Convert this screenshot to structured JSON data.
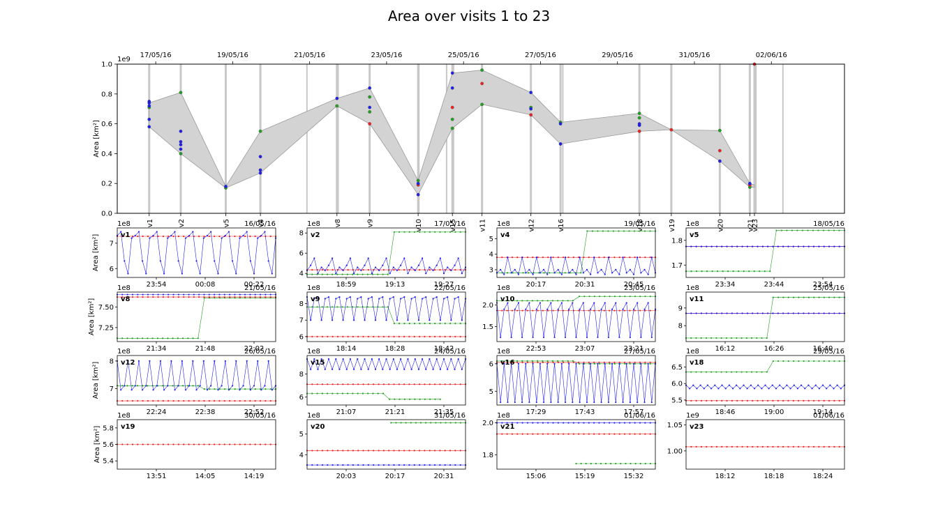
{
  "chart_data": [
    {
      "type": "area",
      "id": "main",
      "title": "Area over visits 1 to 23",
      "ylabel": "Area [km²]",
      "y_scale_label": "1e9",
      "ylim": [
        0,
        1.0
      ],
      "yticks": [
        "0.0",
        "0.2",
        "0.4",
        "0.6",
        "0.8",
        "1.0"
      ],
      "xlim": [
        0.0,
        18.9
      ],
      "top_ticks": [
        {
          "x": 1.0,
          "label": "17/05/16"
        },
        {
          "x": 3.0,
          "label": "19/05/16"
        },
        {
          "x": 5.0,
          "label": "21/05/16"
        },
        {
          "x": 7.0,
          "label": "23/05/16"
        },
        {
          "x": 9.0,
          "label": "25/05/16"
        },
        {
          "x": 11.0,
          "label": "27/05/16"
        },
        {
          "x": 13.0,
          "label": "29/05/16"
        },
        {
          "x": 15.0,
          "label": "31/05/16"
        },
        {
          "x": 17.0,
          "label": "02/06/16"
        }
      ],
      "visits": [
        {
          "label": "v1",
          "x": 0.83
        },
        {
          "label": "v2",
          "x": 1.65
        },
        {
          "label": "v5",
          "x": 2.82
        },
        {
          "label": "v4",
          "x": 3.72
        },
        {
          "label": "v8",
          "x": 5.71
        },
        {
          "label": "v9",
          "x": 6.56
        },
        {
          "label": "v10",
          "x": 7.82
        },
        {
          "label": "v15",
          "x": 8.71
        },
        {
          "label": "v11",
          "x": 9.48
        },
        {
          "label": "v12",
          "x": 10.75
        },
        {
          "label": "v16",
          "x": 11.52
        },
        {
          "label": "v18",
          "x": 13.57
        },
        {
          "label": "v19",
          "x": 14.4
        },
        {
          "label": "v20",
          "x": 15.66
        },
        {
          "label": "v21",
          "x": 16.44
        },
        {
          "label": "v23",
          "x": 16.56
        }
      ],
      "extra_lines": [
        4.93,
        5.74,
        7.84,
        8.56,
        8.74,
        11.58,
        16.6,
        17.3
      ],
      "band_upper": [
        [
          0.83,
          0.74
        ],
        [
          1.65,
          0.81
        ],
        [
          2.82,
          0.18
        ],
        [
          3.72,
          0.55
        ],
        [
          5.71,
          0.77
        ],
        [
          6.56,
          0.84
        ],
        [
          7.82,
          0.22
        ],
        [
          8.71,
          0.94
        ],
        [
          9.48,
          0.96
        ],
        [
          10.75,
          0.81
        ],
        [
          11.52,
          0.61
        ],
        [
          13.57,
          0.67
        ],
        [
          14.4,
          0.56
        ],
        [
          15.66,
          0.555
        ],
        [
          16.44,
          0.2
        ],
        [
          16.56,
          0.19
        ]
      ],
      "band_lower": [
        [
          0.83,
          0.58
        ],
        [
          1.65,
          0.4
        ],
        [
          2.82,
          0.17
        ],
        [
          3.72,
          0.27
        ],
        [
          5.71,
          0.72
        ],
        [
          6.56,
          0.6
        ],
        [
          7.82,
          0.125
        ],
        [
          8.71,
          0.57
        ],
        [
          9.48,
          0.73
        ],
        [
          10.75,
          0.66
        ],
        [
          11.52,
          0.465
        ],
        [
          13.57,
          0.55
        ],
        [
          14.4,
          0.56
        ],
        [
          15.66,
          0.35
        ],
        [
          16.44,
          0.175
        ],
        [
          16.56,
          0.175
        ]
      ],
      "points_blue": [
        [
          0.83,
          0.75
        ],
        [
          0.83,
          0.74
        ],
        [
          0.83,
          0.72
        ],
        [
          0.83,
          0.63
        ],
        [
          0.83,
          0.58
        ],
        [
          1.65,
          0.55
        ],
        [
          1.65,
          0.48
        ],
        [
          1.65,
          0.46
        ],
        [
          1.65,
          0.43
        ],
        [
          2.82,
          0.18
        ],
        [
          3.72,
          0.38
        ],
        [
          3.72,
          0.29
        ],
        [
          3.72,
          0.27
        ],
        [
          5.71,
          0.77
        ],
        [
          6.56,
          0.84
        ],
        [
          6.56,
          0.71
        ],
        [
          7.82,
          0.2
        ],
        [
          7.82,
          0.125
        ],
        [
          8.71,
          0.94
        ],
        [
          8.71,
          0.84
        ],
        [
          10.75,
          0.81
        ],
        [
          10.75,
          0.7
        ],
        [
          11.52,
          0.6
        ],
        [
          11.52,
          0.465
        ],
        [
          13.57,
          0.6
        ],
        [
          13.57,
          0.59
        ],
        [
          15.66,
          0.35
        ],
        [
          16.44,
          0.2
        ]
      ],
      "points_red": [
        [
          6.56,
          0.6
        ],
        [
          7.82,
          0.19
        ],
        [
          8.71,
          0.71
        ],
        [
          9.48,
          0.87
        ],
        [
          10.75,
          0.66
        ],
        [
          13.57,
          0.55
        ],
        [
          14.4,
          0.56
        ],
        [
          15.66,
          0.42
        ],
        [
          16.44,
          0.19
        ],
        [
          16.56,
          1.0
        ]
      ],
      "points_green": [
        [
          0.83,
          0.71
        ],
        [
          1.65,
          0.81
        ],
        [
          1.65,
          0.4
        ],
        [
          2.82,
          0.17
        ],
        [
          3.72,
          0.55
        ],
        [
          5.71,
          0.72
        ],
        [
          6.56,
          0.78
        ],
        [
          6.56,
          0.68
        ],
        [
          7.82,
          0.22
        ],
        [
          8.71,
          0.63
        ],
        [
          8.71,
          0.57
        ],
        [
          9.48,
          0.96
        ],
        [
          9.48,
          0.73
        ],
        [
          10.75,
          0.71
        ],
        [
          11.52,
          0.61
        ],
        [
          13.57,
          0.67
        ],
        [
          13.57,
          0.64
        ],
        [
          15.66,
          0.555
        ],
        [
          16.44,
          0.175
        ]
      ]
    },
    {
      "type": "line",
      "label": "v1",
      "scale": "1e8",
      "date": "16/05/16",
      "ticks": [
        "23:54",
        "00:08",
        "00:22"
      ],
      "yticks": [
        {
          "v": 6,
          "l": "6"
        },
        {
          "v": 7,
          "l": "7"
        }
      ],
      "ylim": [
        5.65,
        7.6
      ],
      "series": {
        "blue": [
          7.3,
          7.45,
          6.3,
          5.8,
          7.2
        ],
        "red": [
          7.27
        ],
        "green": [
          7.2
        ]
      },
      "pattern": "zig",
      "ylabel": "Area [km²]"
    },
    {
      "type": "line",
      "label": "v2",
      "scale": "1e8",
      "date": "17/05/16",
      "ticks": [
        "18:59",
        "19:13",
        "19:27"
      ],
      "yticks": [
        {
          "v": 4,
          "l": "4"
        },
        {
          "v": 6,
          "l": "6"
        },
        {
          "v": 8,
          "l": "8"
        }
      ],
      "ylim": [
        3.6,
        8.5
      ],
      "series": {
        "blue": [
          4.3,
          4.8,
          5.5,
          4.0,
          4.6
        ],
        "red": [
          4.35
        ],
        "green_step": [
          3.9,
          8.1,
          0.53
        ]
      },
      "pattern": "zig"
    },
    {
      "type": "line",
      "label": "v4",
      "scale": "1e8",
      "date": "19/05/16",
      "ticks": [
        "20:17",
        "20:31",
        "20:45"
      ],
      "yticks": [
        {
          "v": 3,
          "l": "3"
        },
        {
          "v": 4,
          "l": "4"
        },
        {
          "v": 5,
          "l": "5"
        }
      ],
      "ylim": [
        2.5,
        5.7
      ],
      "series": {
        "blue": [
          2.8,
          3.0,
          2.7,
          3.8
        ],
        "red": [
          3.8
        ],
        "green_step": [
          2.8,
          5.5,
          0.55
        ]
      },
      "pattern": "zig"
    },
    {
      "type": "line",
      "label": "v5",
      "scale": "1e8",
      "date": "18/05/16",
      "ticks": [
        "23:34",
        "23:44",
        "23:54"
      ],
      "yticks": [
        {
          "v": 1.7,
          "l": "1.7"
        },
        {
          "v": 1.8,
          "l": "1.8"
        }
      ],
      "ylim": [
        1.65,
        1.85
      ],
      "series": {
        "blue": [
          1.775
        ],
        "red": [
          1.775
        ],
        "green_step": [
          1.675,
          1.84,
          0.55
        ]
      },
      "pattern": "flat"
    },
    {
      "type": "line",
      "label": "v8",
      "scale": "1e8",
      "date": "21/05/16",
      "ticks": [
        "21:34",
        "21:48",
        "22:02"
      ],
      "yticks": [
        {
          "v": 7.25,
          "l": "7.25"
        },
        {
          "v": 7.5,
          "l": "7.50"
        }
      ],
      "ylim": [
        7.08,
        7.68
      ],
      "series": {
        "blue": [
          7.65
        ],
        "red": [
          7.62
        ],
        "green_step": [
          7.12,
          7.61,
          0.53
        ]
      },
      "pattern": "flat",
      "ylabel": "Area [km²]"
    },
    {
      "type": "line",
      "label": "v9",
      "scale": "1e8",
      "date": "22/05/16",
      "ticks": [
        "18:14",
        "18:28",
        "18:42"
      ],
      "yticks": [
        {
          "v": 6,
          "l": "6"
        },
        {
          "v": 7,
          "l": "7"
        },
        {
          "v": 8,
          "l": "8"
        }
      ],
      "ylim": [
        5.7,
        8.7
      ],
      "series": {
        "blue": [
          8.4,
          7.0,
          8.3
        ],
        "red": [
          6.0
        ],
        "green_step": [
          7.8,
          6.8,
          0.53
        ]
      },
      "pattern": "zig"
    },
    {
      "type": "line",
      "label": "v10",
      "scale": "1e8",
      "date": "23/05/16",
      "ticks": [
        "22:53",
        "23:07",
        "23:21"
      ],
      "yticks": [
        {
          "v": 1.5,
          "l": "1.5"
        },
        {
          "v": 2.0,
          "l": "2.0"
        }
      ],
      "ylim": [
        1.15,
        2.3
      ],
      "series": {
        "blue": [
          2.05,
          1.25,
          1.9
        ],
        "red": [
          1.87
        ],
        "green_step": [
          2.1,
          2.2,
          0.5
        ]
      },
      "pattern": "zig"
    },
    {
      "type": "line",
      "label": "v11",
      "scale": "1e8",
      "date": "25/05/16",
      "ticks": [
        "16:12",
        "16:26",
        "16:40"
      ],
      "yticks": [
        {
          "v": 8,
          "l": "8"
        },
        {
          "v": 9,
          "l": "9"
        }
      ],
      "ylim": [
        7.1,
        9.9
      ],
      "series": {
        "blue": [
          8.7
        ],
        "red": [
          8.7
        ],
        "green_step": [
          7.3,
          9.6,
          0.53
        ]
      },
      "pattern": "flat"
    },
    {
      "type": "line",
      "label": "v12",
      "scale": "1e8",
      "date": "26/05/16",
      "ticks": [
        "22:24",
        "22:38",
        "22:52"
      ],
      "yticks": [
        {
          "v": 7,
          "l": "7"
        },
        {
          "v": 8,
          "l": "8"
        }
      ],
      "ylim": [
        6.4,
        8.2
      ],
      "series": {
        "blue": [
          8.0,
          6.95,
          7.1
        ],
        "red": [
          6.55
        ],
        "green_step": [
          7.1,
          6.98,
          0.53
        ]
      },
      "pattern": "zig",
      "ylabel": "Area [km²]"
    },
    {
      "type": "line",
      "label": "v15",
      "scale": "1e8",
      "date": "24/05/16",
      "ticks": [
        "21:07",
        "21:21",
        "21:35"
      ],
      "yticks": [
        {
          "v": 6,
          "l": "6"
        },
        {
          "v": 8,
          "l": "8"
        }
      ],
      "ylim": [
        5.3,
        9.6
      ],
      "series": {
        "blue": [
          9.3,
          8.4
        ],
        "red": [
          7.1
        ],
        "green_step": [
          6.3,
          5.8,
          0.5
        ]
      },
      "pattern": "zig",
      "green_end": 0.84
    },
    {
      "type": "line",
      "label": "v16",
      "scale": "1e8",
      "date": "27/05/16",
      "ticks": [
        "17:29",
        "17:43",
        "17:57"
      ],
      "yticks": [
        {
          "v": 5,
          "l": "5"
        },
        {
          "v": 6,
          "l": "6"
        }
      ],
      "ylim": [
        4.5,
        6.3
      ],
      "series": {
        "blue": [
          6.0,
          4.6
        ],
        "red": [
          6.05
        ],
        "green_step": [
          6.1,
          6.0,
          0.5
        ]
      },
      "pattern": "zig"
    },
    {
      "type": "line",
      "label": "v18",
      "scale": "1e8",
      "date": "29/05/16",
      "ticks": [
        "18:46",
        "19:00",
        "19:14"
      ],
      "yticks": [
        {
          "v": 5.5,
          "l": "5.5"
        },
        {
          "v": 6.0,
          "l": "6.0"
        },
        {
          "v": 6.5,
          "l": "6.5"
        }
      ],
      "ylim": [
        5.35,
        6.85
      ],
      "series": {
        "blue": [
          5.95,
          5.85
        ],
        "red": [
          5.48
        ],
        "green_step": [
          6.35,
          6.68,
          0.53
        ]
      },
      "pattern": "zig2"
    },
    {
      "type": "line",
      "label": "v19",
      "scale": "1e8",
      "date": "30/05/16",
      "ticks": [
        "13:51",
        "14:05",
        "14:19"
      ],
      "yticks": [
        {
          "v": 5.4,
          "l": "5.4"
        },
        {
          "v": 5.6,
          "l": "5.6"
        },
        {
          "v": 5.8,
          "l": "5.8"
        }
      ],
      "ylim": [
        5.3,
        5.9
      ],
      "series": {
        "red": [
          5.6
        ]
      },
      "pattern": "flat",
      "ylabel": "Area [km²]"
    },
    {
      "type": "line",
      "label": "v20",
      "scale": "1e8",
      "date": "31/05/16",
      "ticks": [
        "20:03",
        "20:17",
        "20:31"
      ],
      "yticks": [
        {
          "v": 4,
          "l": "4"
        },
        {
          "v": 5,
          "l": "5"
        }
      ],
      "ylim": [
        3.3,
        5.7
      ],
      "series": {
        "blue": [
          3.5
        ],
        "red": [
          4.2
        ]
      },
      "pattern": "flat",
      "green_start": [
        0.53,
        5.55
      ]
    },
    {
      "type": "line",
      "label": "v21",
      "scale": "1e8",
      "date": "01/06/16",
      "ticks": [
        "15:06",
        "15:19",
        "15:32"
      ],
      "yticks": [
        {
          "v": 1.8,
          "l": "1.8"
        },
        {
          "v": 2.0,
          "l": "2.0"
        }
      ],
      "ylim": [
        1.71,
        2.02
      ],
      "series": {
        "blue": [
          2.0
        ],
        "red": [
          1.93
        ]
      },
      "pattern": "flat",
      "green_start": [
        0.5,
        1.745
      ]
    },
    {
      "type": "line",
      "label": "v23",
      "scale": "1e9",
      "date": "01/06/16",
      "ticks": [
        "18:12",
        "18:18",
        "18:24"
      ],
      "yticks": [
        {
          "v": 1.0,
          "l": "1.00"
        },
        {
          "v": 1.05,
          "l": "1.05"
        }
      ],
      "ylim": [
        0.965,
        1.06
      ],
      "series": {
        "red": [
          1.008
        ]
      },
      "pattern": "flat"
    }
  ]
}
